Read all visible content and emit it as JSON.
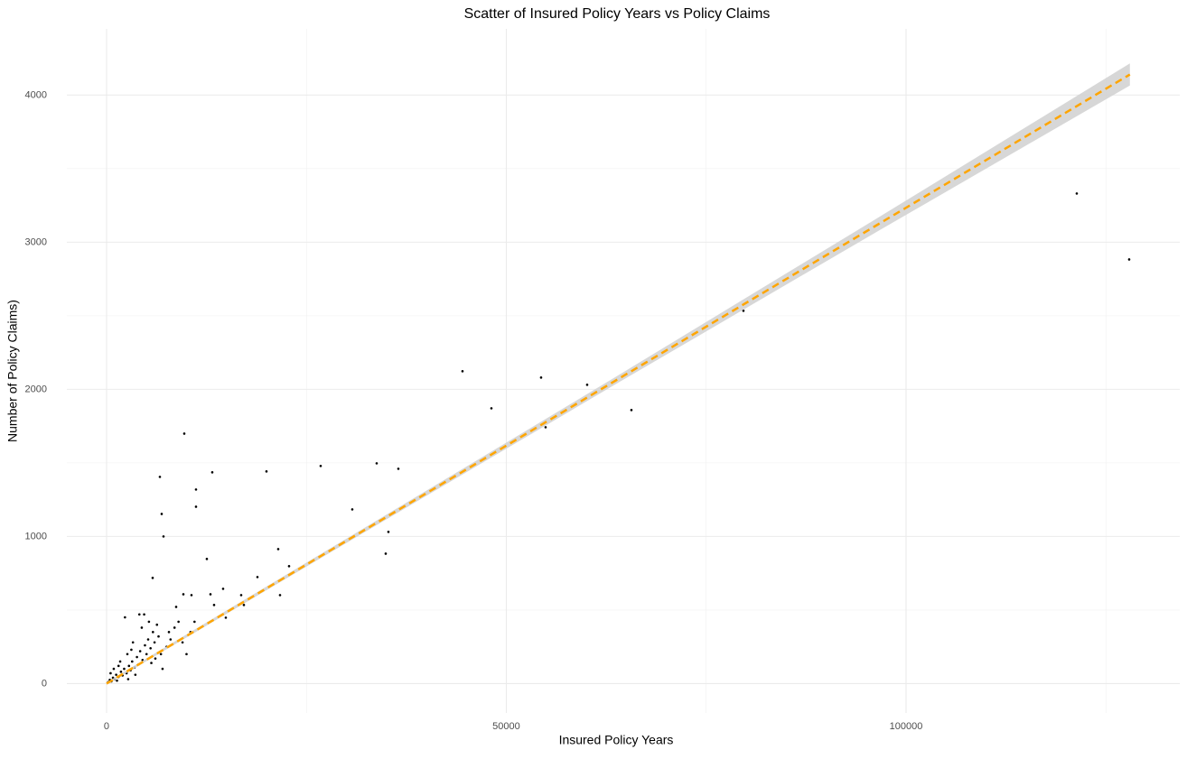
{
  "chart_data": {
    "type": "scatter",
    "title": "Scatter of Insured Policy Years vs Policy Claims",
    "x_label": "Insured Policy Years",
    "y_label": "Number of Policy Claims)",
    "xlim": [
      -4970,
      134240
    ],
    "ylim": [
      -200,
      4450
    ],
    "xticks": [
      0,
      50000,
      100000
    ],
    "yticks": [
      0,
      1000,
      2000,
      3000,
      4000
    ],
    "x_minor_ticks": [
      25000,
      75000,
      125000
    ],
    "y_minor_ticks": [
      500,
      1500,
      2500,
      3500
    ],
    "grid": true,
    "color": "#000000",
    "x": [
      121356,
      127910,
      79661,
      44520,
      48136,
      54350,
      60113,
      65650,
      54915,
      33785,
      36497,
      26780,
      20000,
      30734,
      35254,
      34915,
      9718,
      6667,
      13220,
      11186,
      11186,
      6893,
      7119,
      12542,
      21469,
      22825,
      18870,
      21695,
      5763,
      14576,
      16836,
      14915,
      9605,
      10621,
      12994,
      13446,
      17175,
      8701,
      200,
      400,
      600,
      800,
      1000,
      1200,
      1500,
      1800,
      2000,
      2200,
      2500,
      2800,
      3000,
      3200,
      3500,
      3800,
      4000,
      4200,
      4500,
      4800,
      5000,
      5200,
      5500,
      5800,
      6000,
      6300,
      6500,
      2300,
      3300,
      4100,
      4700,
      5300,
      6100,
      7000,
      7500,
      8000,
      8500,
      9000,
      9500,
      10000,
      10500,
      11000,
      1500,
      2600,
      3600,
      500,
      900,
      1300,
      1700,
      2700,
      3100,
      4400,
      5600,
      6800,
      7800
    ],
    "y": [
      3331,
      2883,
      2534,
      2123,
      1871,
      2080,
      2031,
      1859,
      1742,
      1497,
      1460,
      1479,
      1442,
      1184,
      1031,
      883,
      1699,
      1405,
      1436,
      1319,
      1202,
      1153,
      1000,
      847,
      914,
      798,
      724,
      601,
      718,
      644,
      601,
      448,
      607,
      601,
      607,
      534,
      534,
      521,
      10,
      25,
      15,
      40,
      30,
      60,
      45,
      80,
      55,
      100,
      70,
      120,
      90,
      150,
      110,
      180,
      130,
      220,
      160,
      260,
      200,
      300,
      240,
      350,
      280,
      400,
      320,
      450,
      280,
      470,
      470,
      420,
      170,
      100,
      250,
      300,
      380,
      420,
      280,
      200,
      350,
      420,
      120,
      200,
      60,
      70,
      100,
      20,
      150,
      30,
      230,
      380,
      140,
      200,
      350
    ],
    "fit": {
      "color": "#ffa500",
      "band_color": "#d3d3d3",
      "x": [
        0,
        32000,
        64000,
        96000,
        128000
      ],
      "y": [
        0,
        1035,
        2070,
        3105,
        4140
      ],
      "ymin": [
        -8,
        1020,
        2045,
        3060,
        4065
      ],
      "ymax": [
        8,
        1050,
        2095,
        3150,
        4215
      ]
    }
  }
}
